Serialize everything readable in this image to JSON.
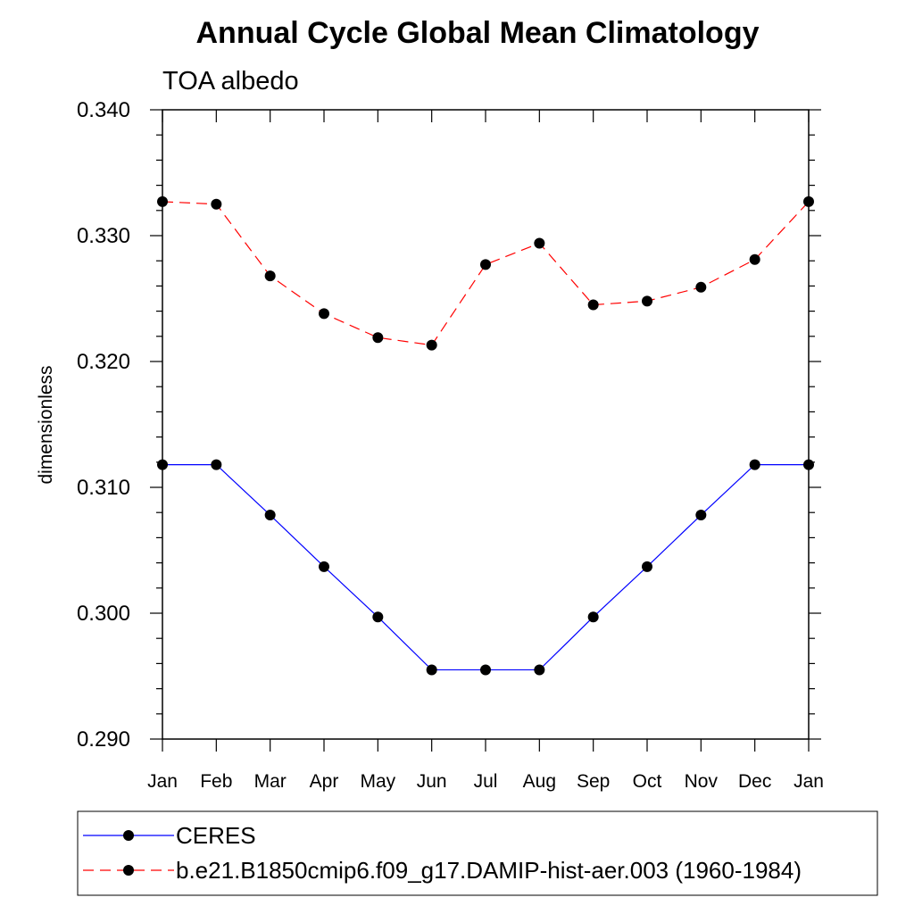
{
  "chart_data": {
    "type": "line",
    "title": "Annual Cycle Global Mean Climatology",
    "subtitle": "TOA albedo",
    "xlabel": "",
    "ylabel": "dimensionless",
    "categories": [
      "Jan",
      "Feb",
      "Mar",
      "Apr",
      "May",
      "Jun",
      "Jul",
      "Aug",
      "Sep",
      "Oct",
      "Nov",
      "Dec",
      "Jan"
    ],
    "ylim": [
      0.29,
      0.34
    ],
    "yticks": [
      "0.290",
      "0.300",
      "0.310",
      "0.320",
      "0.330",
      "0.340"
    ],
    "ytick_values": [
      0.29,
      0.3,
      0.31,
      0.32,
      0.33,
      0.34
    ],
    "grid": false,
    "legend_position": "bottom",
    "series": [
      {
        "name": "CERES",
        "color": "#0000ff",
        "line_style": "solid",
        "marker": "filled-circle",
        "values": [
          0.3118,
          0.3118,
          0.3078,
          0.3037,
          0.2997,
          0.2955,
          0.2955,
          0.2955,
          0.2997,
          0.3037,
          0.3078,
          0.3118,
          0.3118
        ]
      },
      {
        "name": "b.e21.B1850cmip6.f09_g17.DAMIP-hist-aer.003 (1960-1984)",
        "color": "#ff0000",
        "line_style": "dashed",
        "marker": "filled-circle",
        "values": [
          0.3327,
          0.3325,
          0.3268,
          0.3238,
          0.3219,
          0.3213,
          0.3277,
          0.3294,
          0.3245,
          0.3248,
          0.3259,
          0.3281,
          0.3327
        ]
      }
    ]
  }
}
